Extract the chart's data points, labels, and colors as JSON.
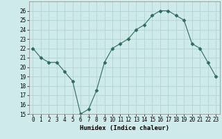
{
  "x": [
    0,
    1,
    2,
    3,
    4,
    5,
    6,
    7,
    8,
    9,
    10,
    11,
    12,
    13,
    14,
    15,
    16,
    17,
    18,
    19,
    20,
    21,
    22,
    23
  ],
  "y": [
    22,
    21,
    20.5,
    20.5,
    19.5,
    18.5,
    15,
    15.5,
    17.5,
    20.5,
    22,
    22.5,
    23,
    24,
    24.5,
    25.5,
    26,
    26,
    25.5,
    25,
    22.5,
    22,
    20.5,
    19
  ],
  "line_color": "#2d6b5e",
  "marker": "D",
  "marker_size": 2.5,
  "xlabel": "Humidex (Indice chaleur)",
  "ylim": [
    15,
    27
  ],
  "xlim": [
    -0.5,
    23.5
  ],
  "yticks": [
    15,
    16,
    17,
    18,
    19,
    20,
    21,
    22,
    23,
    24,
    25,
    26
  ],
  "xticks": [
    0,
    1,
    2,
    3,
    4,
    5,
    6,
    7,
    8,
    9,
    10,
    11,
    12,
    13,
    14,
    15,
    16,
    17,
    18,
    19,
    20,
    21,
    22,
    23
  ],
  "bg_color": "#ceeaea",
  "grid_color": "#aed0d0",
  "label_fontsize": 6.5,
  "tick_fontsize": 5.5
}
